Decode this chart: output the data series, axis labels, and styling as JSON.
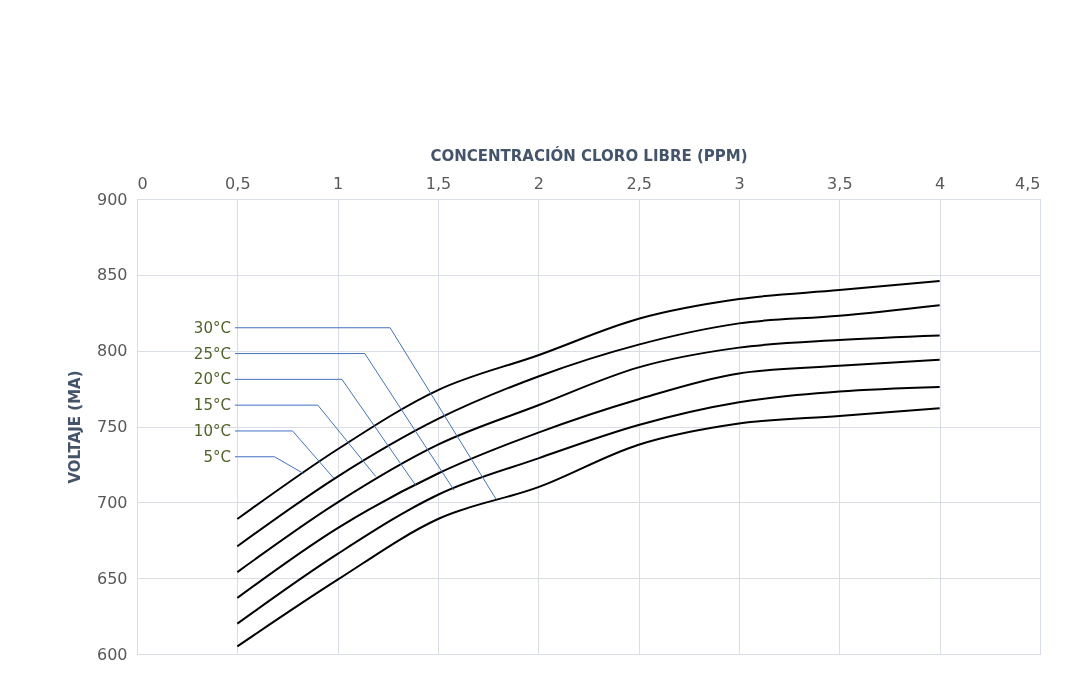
{
  "chart_data": {
    "type": "line",
    "xlabel": "CONCENTRACIÓN CLORO LIBRE (PPM)",
    "ylabel": "VOLTAJE (MA)",
    "x": [
      0.5,
      1,
      1.5,
      2,
      2.5,
      3,
      3.5,
      4
    ],
    "series": [
      {
        "color": "#000000",
        "values": [
          689,
          735,
          774,
          797,
          821,
          834,
          840,
          846
        ]
      },
      {
        "color": "#000000",
        "values": [
          671,
          717,
          755,
          783,
          804,
          818,
          823,
          830
        ]
      },
      {
        "color": "#000000",
        "values": [
          654,
          700,
          738,
          764,
          789,
          802,
          807,
          810
        ]
      },
      {
        "color": "#000000",
        "values": [
          637,
          683,
          719,
          746,
          768,
          785,
          790,
          794
        ]
      },
      {
        "color": "#000000",
        "values": [
          620,
          666,
          705,
          729,
          751,
          766,
          773,
          776
        ]
      },
      {
        "color": "#000000",
        "values": [
          605,
          649,
          689,
          710,
          738,
          752,
          757,
          762
        ]
      }
    ],
    "annotations": [
      {
        "text": "30°C",
        "x": 1.79,
        "y": 702
      },
      {
        "text": "25°C",
        "x": 1.58,
        "y": 708
      },
      {
        "text": "20°C",
        "x": 1.39,
        "y": 711
      },
      {
        "text": "15°C",
        "x": 1.19,
        "y": 717
      },
      {
        "text": "10°C",
        "x": 0.98,
        "y": 716
      },
      {
        "text": "5°C",
        "x": 0.83,
        "y": 719
      }
    ],
    "xlim": [
      0,
      4.5
    ],
    "xticks": [
      0,
      {
        "value": 0.5,
        "label": "0,5"
      },
      1,
      {
        "value": 1.5,
        "label": "1,5"
      },
      2,
      {
        "value": 2.5,
        "label": "2,5"
      },
      3,
      {
        "value": 3.5,
        "label": "3,5"
      },
      4,
      {
        "value": 4.5,
        "label": "4,5"
      }
    ],
    "ylim": [
      600,
      900
    ],
    "yticks": [
      600,
      650,
      700,
      750,
      800,
      850,
      900
    ],
    "grid": true,
    "legend": false,
    "marker": "none",
    "line_style": "solid"
  }
}
